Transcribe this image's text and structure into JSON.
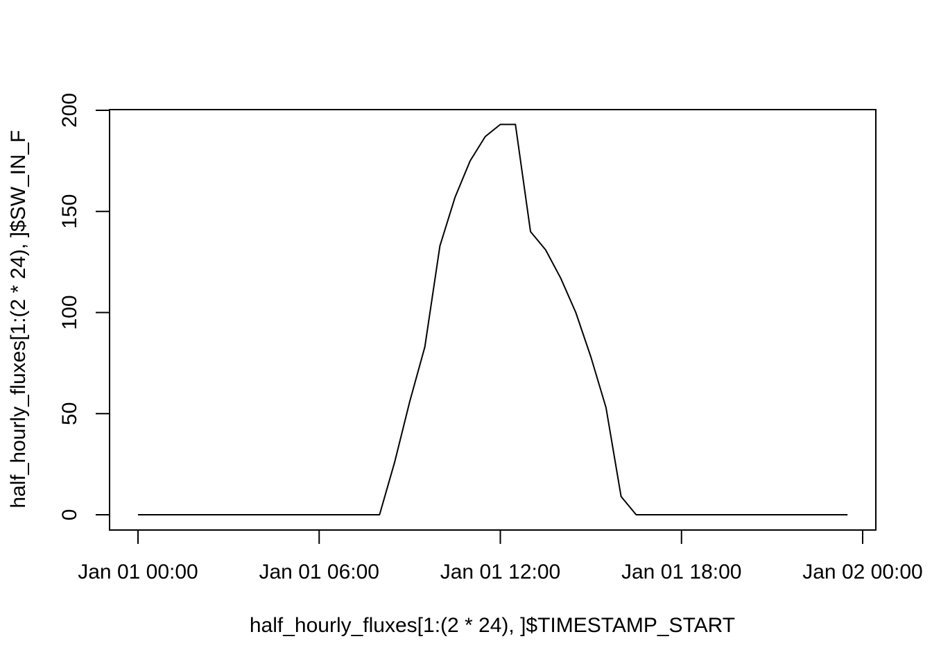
{
  "chart_data": {
    "type": "line",
    "title": "",
    "xlabel": "half_hourly_fluxes[1:(2 * 24), ]$TIMESTAMP_START",
    "ylabel": "half_hourly_fluxes[1:(2 * 24), ]$SW_IN_F",
    "x_ticks": [
      "Jan 01 00:00",
      "Jan 01 06:00",
      "Jan 01 12:00",
      "Jan 01 18:00",
      "Jan 02 00:00"
    ],
    "y_ticks": [
      "0",
      "50",
      "100",
      "150",
      "200"
    ],
    "ylim": [
      0,
      200
    ],
    "xlim": [
      "Jan 01 00:00",
      "Jan 02 00:00"
    ],
    "grid": false,
    "x": [
      "Jan 01 00:00",
      "Jan 01 00:30",
      "Jan 01 01:00",
      "Jan 01 01:30",
      "Jan 01 02:00",
      "Jan 01 02:30",
      "Jan 01 03:00",
      "Jan 01 03:30",
      "Jan 01 04:00",
      "Jan 01 04:30",
      "Jan 01 05:00",
      "Jan 01 05:30",
      "Jan 01 06:00",
      "Jan 01 06:30",
      "Jan 01 07:00",
      "Jan 01 07:30",
      "Jan 01 08:00",
      "Jan 01 08:30",
      "Jan 01 09:00",
      "Jan 01 09:30",
      "Jan 01 10:00",
      "Jan 01 10:30",
      "Jan 01 11:00",
      "Jan 01 11:30",
      "Jan 01 12:00",
      "Jan 01 12:30",
      "Jan 01 13:00",
      "Jan 01 13:30",
      "Jan 01 14:00",
      "Jan 01 14:30",
      "Jan 01 15:00",
      "Jan 01 15:30",
      "Jan 01 16:00",
      "Jan 01 16:30",
      "Jan 01 17:00",
      "Jan 01 17:30",
      "Jan 01 18:00",
      "Jan 01 18:30",
      "Jan 01 19:00",
      "Jan 01 19:30",
      "Jan 01 20:00",
      "Jan 01 20:30",
      "Jan 01 21:00",
      "Jan 01 21:30",
      "Jan 01 22:00",
      "Jan 01 22:30",
      "Jan 01 23:00",
      "Jan 01 23:30"
    ],
    "series": [
      {
        "values": [
          0,
          0,
          0,
          0,
          0,
          0,
          0,
          0,
          0,
          0,
          0,
          0,
          0,
          0,
          0,
          0,
          0,
          26,
          56,
          83,
          133,
          157,
          175,
          187,
          193,
          193,
          140,
          131,
          117,
          100,
          78,
          53,
          9,
          0,
          0,
          0,
          0,
          0,
          0,
          0,
          0,
          0,
          0,
          0,
          0,
          0,
          0,
          0
        ]
      }
    ]
  }
}
